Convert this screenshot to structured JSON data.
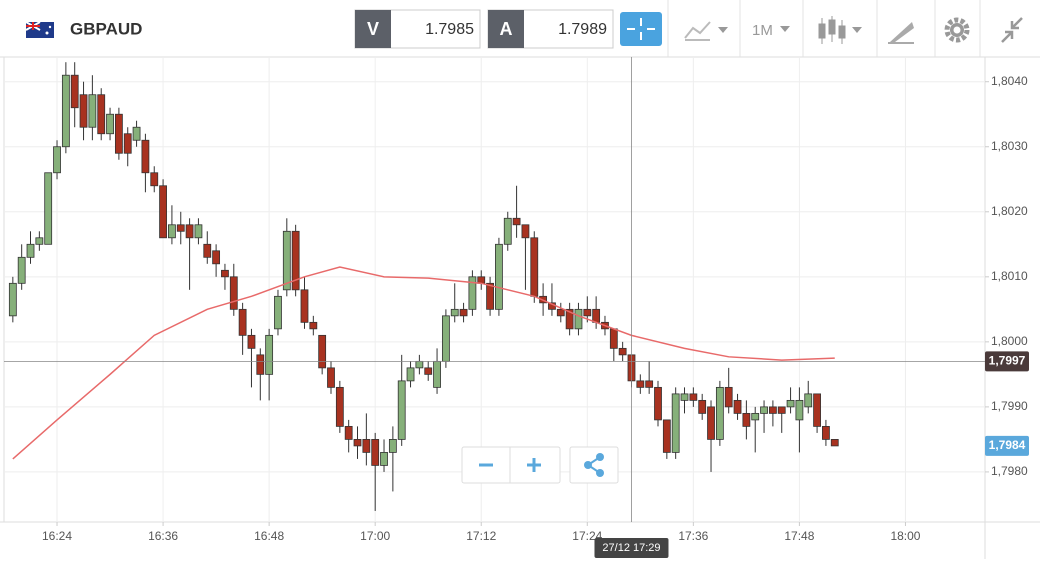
{
  "toolbar": {
    "symbol": "GBPAUD",
    "bid_label": "V",
    "bid": "1.7985",
    "ask_label": "A",
    "ask": "1.7989",
    "timeframe": "1M"
  },
  "chart_data": {
    "type": "candlestick",
    "x": [
      "16:19",
      "16:20",
      "16:21",
      "16:22",
      "16:23",
      "16:24",
      "16:25",
      "16:26",
      "16:27",
      "16:28",
      "16:29",
      "16:30",
      "16:31",
      "16:32",
      "16:33",
      "16:34",
      "16:35",
      "16:36",
      "16:37",
      "16:38",
      "16:39",
      "16:40",
      "16:41",
      "16:42",
      "16:43",
      "16:44",
      "16:45",
      "16:46",
      "16:47",
      "16:48",
      "16:49",
      "16:50",
      "16:51",
      "16:52",
      "16:53",
      "16:54",
      "16:55",
      "16:56",
      "16:57",
      "16:58",
      "16:59",
      "17:00",
      "17:01",
      "17:02",
      "17:03",
      "17:04",
      "17:05",
      "17:06",
      "17:07",
      "17:08",
      "17:09",
      "17:10",
      "17:11",
      "17:12",
      "17:13",
      "17:14",
      "17:15",
      "17:16",
      "17:17",
      "17:18",
      "17:19",
      "17:20",
      "17:21",
      "17:22",
      "17:23",
      "17:24",
      "17:25",
      "17:26",
      "17:27",
      "17:28",
      "17:29",
      "17:30",
      "17:31",
      "17:32",
      "17:33",
      "17:34",
      "17:35",
      "17:36",
      "17:37",
      "17:38",
      "17:39",
      "17:40",
      "17:41",
      "17:42",
      "17:43",
      "17:44",
      "17:45",
      "17:46",
      "17:47",
      "17:48",
      "17:49",
      "17:50",
      "17:51",
      "17:52"
    ],
    "open": [
      1.8004,
      1.8009,
      1.8013,
      1.8015,
      1.8015,
      1.8026,
      1.803,
      1.8041,
      1.8038,
      1.8033,
      1.8038,
      1.8032,
      1.8035,
      1.8032,
      1.8031,
      1.8031,
      1.8026,
      1.8024,
      1.8016,
      1.8018,
      1.8018,
      1.8016,
      1.8015,
      1.8014,
      1.8011,
      1.801,
      1.8005,
      1.8001,
      1.7998,
      1.7995,
      1.8002,
      1.8008,
      1.8017,
      1.8008,
      1.8003,
      1.8001,
      1.7996,
      1.7993,
      1.7987,
      1.7985,
      1.7985,
      1.7985,
      1.7981,
      1.7983,
      1.7985,
      1.7994,
      1.7996,
      1.7996,
      1.7993,
      1.7997,
      1.8004,
      1.8005,
      1.8005,
      1.801,
      1.8009,
      1.8005,
      1.8015,
      1.8019,
      1.8018,
      1.8016,
      1.8007,
      1.8006,
      1.8005,
      1.8005,
      1.8002,
      1.8005,
      1.8005,
      1.8003,
      1.8002,
      1.7999,
      1.7998,
      1.7994,
      1.7994,
      1.7993,
      1.7988,
      1.7983,
      1.7991,
      1.7992,
      1.7991,
      1.799,
      1.7985,
      1.7993,
      1.7991,
      1.7989,
      1.7988,
      1.7989,
      1.799,
      1.799,
      1.799,
      1.7988,
      1.799,
      1.7992,
      1.7987,
      1.7985
    ],
    "high": [
      1.801,
      1.8015,
      1.8017,
      1.8017,
      1.8026,
      1.8031,
      1.8043,
      1.8043,
      1.804,
      1.8041,
      1.8039,
      1.8036,
      1.8036,
      1.8033,
      1.8034,
      1.8032,
      1.8027,
      1.8025,
      1.8021,
      1.802,
      1.8019,
      1.8019,
      1.8017,
      1.8015,
      1.8012,
      1.8012,
      1.8006,
      1.8002,
      1.7999,
      1.8002,
      1.8008,
      1.8019,
      1.8018,
      1.801,
      1.8004,
      1.8001,
      1.7997,
      1.7994,
      1.7988,
      1.7987,
      1.7989,
      1.7986,
      1.7985,
      1.7987,
      1.7998,
      1.7997,
      1.7998,
      1.7997,
      1.7999,
      1.8005,
      1.8009,
      1.8006,
      1.8011,
      1.8011,
      1.801,
      1.8016,
      1.802,
      1.8024,
      1.8018,
      1.8017,
      1.8009,
      1.8009,
      1.8006,
      1.8006,
      1.8006,
      1.8007,
      1.8007,
      1.8004,
      1.8002,
      1.8,
      1.7998,
      1.7995,
      1.7997,
      1.7994,
      1.7988,
      1.7993,
      1.7993,
      1.7993,
      1.7992,
      1.7991,
      1.7994,
      1.7996,
      1.7992,
      1.7991,
      1.799,
      1.7991,
      1.7991,
      1.799,
      1.7993,
      1.7993,
      1.7994,
      1.7992,
      1.7988,
      1.7985
    ],
    "low": [
      1.8003,
      1.8008,
      1.8012,
      1.8014,
      1.8015,
      1.8025,
      1.8029,
      1.8033,
      1.8031,
      1.8031,
      1.8031,
      1.8031,
      1.8028,
      1.8027,
      1.803,
      1.8023,
      1.8023,
      1.8016,
      1.8015,
      1.8015,
      1.8008,
      1.8015,
      1.8012,
      1.801,
      1.8008,
      1.8004,
      1.7998,
      1.7993,
      1.7991,
      1.7991,
      1.8001,
      1.8007,
      1.8007,
      1.8002,
      1.8001,
      1.7995,
      1.7992,
      1.7986,
      1.7983,
      1.7982,
      1.7981,
      1.7974,
      1.798,
      1.7977,
      1.7984,
      1.7993,
      1.7995,
      1.7994,
      1.7992,
      1.7996,
      1.8003,
      1.8003,
      1.8004,
      1.8008,
      1.8004,
      1.8004,
      1.8014,
      1.8016,
      1.8008,
      1.8006,
      1.8004,
      1.8004,
      1.8003,
      1.8001,
      1.8001,
      1.8003,
      1.8002,
      1.8001,
      1.7997,
      1.7997,
      1.7993,
      1.7992,
      1.7992,
      1.7987,
      1.7982,
      1.7982,
      1.7989,
      1.799,
      1.7988,
      1.798,
      1.7984,
      1.7989,
      1.7988,
      1.7985,
      1.7983,
      1.7986,
      1.7987,
      1.7986,
      1.7989,
      1.7983,
      1.7989,
      1.7986,
      1.7984,
      1.7984
    ],
    "close": [
      1.8009,
      1.8013,
      1.8015,
      1.8016,
      1.8026,
      1.803,
      1.8041,
      1.8036,
      1.8033,
      1.8038,
      1.8032,
      1.8035,
      1.8029,
      1.8029,
      1.8033,
      1.8026,
      1.8024,
      1.8016,
      1.8018,
      1.8017,
      1.8016,
      1.8018,
      1.8013,
      1.8012,
      1.801,
      1.8005,
      1.8001,
      1.7999,
      1.7995,
      1.8001,
      1.8007,
      1.8017,
      1.8008,
      1.8003,
      1.8002,
      1.7996,
      1.7993,
      1.7987,
      1.7985,
      1.7984,
      1.7983,
      1.7981,
      1.7983,
      1.7985,
      1.7994,
      1.7996,
      1.7997,
      1.7995,
      1.7997,
      1.8004,
      1.8005,
      1.8004,
      1.801,
      1.8009,
      1.8005,
      1.8015,
      1.8019,
      1.8018,
      1.8016,
      1.8007,
      1.8006,
      1.8005,
      1.8004,
      1.8002,
      1.8005,
      1.8004,
      1.8003,
      1.8002,
      1.7999,
      1.7998,
      1.7994,
      1.7993,
      1.7993,
      1.7988,
      1.7983,
      1.7992,
      1.7992,
      1.7991,
      1.7989,
      1.7985,
      1.7993,
      1.799,
      1.7989,
      1.7987,
      1.7989,
      1.799,
      1.7989,
      1.7989,
      1.7991,
      1.7991,
      1.7992,
      1.7987,
      1.7985,
      1.7984
    ],
    "up_color": "#86b07a",
    "down_color": "#a83220",
    "ma": {
      "color": "#e86a6a",
      "x": [
        "16:19",
        "16:24",
        "16:30",
        "16:35",
        "16:41",
        "16:46",
        "16:52",
        "16:56",
        "17:01",
        "17:06",
        "17:12",
        "17:18",
        "17:23",
        "17:29",
        "17:35",
        "17:40",
        "17:46",
        "17:52"
      ],
      "values": [
        1.7982,
        1.7988,
        1.7995,
        1.8001,
        1.8005,
        1.8007,
        1.801,
        1.80115,
        1.801,
        1.80098,
        1.8009,
        1.8007,
        1.8004,
        1.8001,
        1.7999,
        1.79977,
        1.79972,
        1.79975
      ]
    },
    "xlim": [
      "16:18",
      "18:09"
    ],
    "xticks": [
      "16:24",
      "16:36",
      "16:48",
      "17:00",
      "17:12",
      "17:24",
      "17:36",
      "17:48",
      "18:00"
    ],
    "ylim": [
      1.79723,
      1.80438
    ],
    "yticks": [
      {
        "value": 1.798,
        "label": "1,7980"
      },
      {
        "value": 1.799,
        "label": "1,7990"
      },
      {
        "value": 1.8,
        "label": "1,8000"
      },
      {
        "value": 1.801,
        "label": "1,8010"
      },
      {
        "value": 1.802,
        "label": "1,8020"
      },
      {
        "value": 1.803,
        "label": "1,8030"
      },
      {
        "value": 1.804,
        "label": "1,8040"
      }
    ],
    "grid": true,
    "crosshair": {
      "x": "17:29",
      "x_label": "27/12 17:29",
      "y": 1.7997,
      "y_label": "1,7997"
    },
    "last_price": {
      "value": 1.7984,
      "label": "1,7984"
    }
  }
}
